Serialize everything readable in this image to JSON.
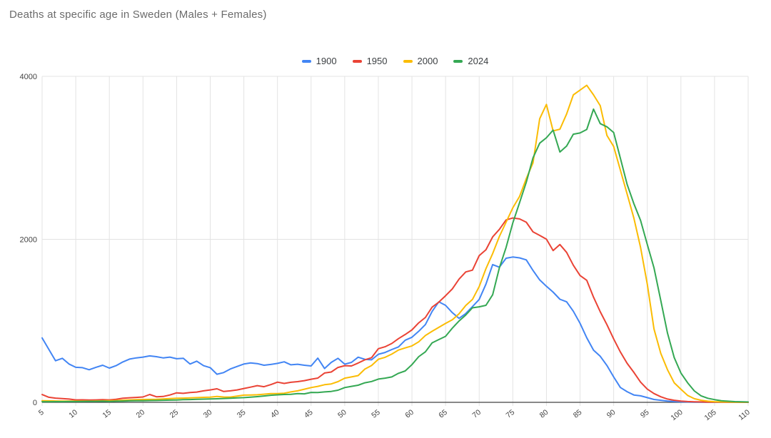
{
  "page": {
    "title": "Deaths at specific age in Sweden (Males + Females)"
  },
  "styles": {
    "background": "#ffffff",
    "title_color": "#6b6b6b",
    "axis_label_color": "#444444",
    "legend_text_color": "#3c4043",
    "gridline_color": "#e3e3e3",
    "axis_line_color": "#424242"
  },
  "chart_data": {
    "type": "line",
    "title": "Deaths at specific age in Sweden (Males + Females)",
    "xlabel": "",
    "ylabel": "",
    "ylim": [
      0,
      4000
    ],
    "y_ticks": [
      0,
      2000,
      4000
    ],
    "x_ticks": [
      5,
      10,
      15,
      20,
      25,
      30,
      35,
      40,
      45,
      50,
      55,
      60,
      65,
      70,
      75,
      80,
      85,
      90,
      95,
      100,
      105,
      110
    ],
    "grid": {
      "vertical": true,
      "horizontal": true
    },
    "legend_position": "top",
    "x": [
      5,
      6,
      7,
      8,
      9,
      10,
      11,
      12,
      13,
      14,
      15,
      16,
      17,
      18,
      19,
      20,
      21,
      22,
      23,
      24,
      25,
      26,
      27,
      28,
      29,
      30,
      31,
      32,
      33,
      34,
      35,
      36,
      37,
      38,
      39,
      40,
      41,
      42,
      43,
      44,
      45,
      46,
      47,
      48,
      49,
      50,
      51,
      52,
      53,
      54,
      55,
      56,
      57,
      58,
      59,
      60,
      61,
      62,
      63,
      64,
      65,
      66,
      67,
      68,
      69,
      70,
      71,
      72,
      73,
      74,
      75,
      76,
      77,
      78,
      79,
      80,
      81,
      82,
      83,
      84,
      85,
      86,
      87,
      88,
      89,
      90,
      91,
      92,
      93,
      94,
      95,
      96,
      97,
      98,
      99,
      100,
      101,
      102,
      103,
      104,
      105,
      106,
      107,
      108,
      109,
      110
    ],
    "series": [
      {
        "name": "1900",
        "color": "#4285f4",
        "values": [
          790,
          650,
          510,
          540,
          470,
          430,
          425,
          400,
          430,
          455,
          420,
          450,
          495,
          530,
          545,
          555,
          570,
          560,
          545,
          555,
          535,
          540,
          470,
          505,
          450,
          425,
          345,
          365,
          410,
          440,
          470,
          483,
          475,
          455,
          465,
          478,
          497,
          460,
          467,
          455,
          446,
          543,
          415,
          490,
          540,
          468,
          490,
          554,
          528,
          522,
          590,
          612,
          648,
          680,
          762,
          798,
          872,
          955,
          1115,
          1233,
          1190,
          1100,
          1030,
          1090,
          1175,
          1262,
          1450,
          1690,
          1658,
          1768,
          1783,
          1772,
          1748,
          1618,
          1502,
          1424,
          1352,
          1265,
          1233,
          1118,
          970,
          792,
          640,
          565,
          452,
          312,
          182,
          130,
          90,
          80,
          58,
          35,
          25,
          16,
          10,
          6,
          4,
          3,
          2,
          2,
          1,
          1,
          1,
          0,
          0,
          0
        ]
      },
      {
        "name": "1950",
        "color": "#ea4335",
        "values": [
          95,
          62,
          52,
          46,
          40,
          30,
          31,
          28,
          30,
          33,
          30,
          38,
          50,
          56,
          60,
          66,
          96,
          68,
          72,
          90,
          116,
          110,
          121,
          126,
          141,
          152,
          166,
          133,
          141,
          152,
          170,
          186,
          205,
          192,
          217,
          248,
          232,
          246,
          254,
          266,
          284,
          298,
          360,
          372,
          428,
          450,
          446,
          482,
          522,
          548,
          658,
          682,
          722,
          782,
          832,
          888,
          975,
          1042,
          1168,
          1230,
          1308,
          1392,
          1512,
          1600,
          1622,
          1800,
          1872,
          2030,
          2122,
          2238,
          2262,
          2250,
          2210,
          2092,
          2048,
          2002,
          1862,
          1936,
          1840,
          1682,
          1556,
          1498,
          1290,
          1112,
          952,
          778,
          618,
          478,
          368,
          248,
          163,
          108,
          68,
          40,
          25,
          15,
          10,
          7,
          5,
          3,
          2,
          2,
          1,
          1,
          0,
          0
        ]
      },
      {
        "name": "2000",
        "color": "#fbbc04",
        "values": [
          20,
          18,
          17,
          15,
          15,
          15,
          16,
          15,
          17,
          18,
          20,
          22,
          26,
          30,
          32,
          35,
          36,
          38,
          42,
          46,
          50,
          52,
          55,
          58,
          61,
          64,
          73,
          66,
          65,
          76,
          88,
          90,
          93,
          100,
          108,
          107,
          112,
          128,
          141,
          161,
          181,
          196,
          216,
          226,
          254,
          297,
          312,
          328,
          408,
          452,
          529,
          552,
          592,
          642,
          668,
          692,
          742,
          820,
          872,
          920,
          968,
          1013,
          1086,
          1188,
          1262,
          1420,
          1640,
          1825,
          2035,
          2210,
          2386,
          2526,
          2745,
          2938,
          3480,
          3655,
          3330,
          3351,
          3538,
          3772,
          3831,
          3890,
          3772,
          3640,
          3274,
          3140,
          2849,
          2555,
          2261,
          1900,
          1450,
          900,
          600,
          400,
          240,
          161,
          85,
          45,
          25,
          14,
          8,
          5,
          4,
          3,
          2,
          2
        ]
      },
      {
        "name": "2024",
        "color": "#34a853",
        "values": [
          8,
          8,
          9,
          9,
          10,
          10,
          11,
          12,
          12,
          14,
          11,
          14,
          16,
          18,
          19,
          20,
          22,
          23,
          25,
          27,
          29,
          32,
          34,
          37,
          39,
          41,
          44,
          47,
          50,
          54,
          58,
          64,
          70,
          78,
          87,
          92,
          96,
          99,
          108,
          104,
          122,
          120,
          128,
          134,
          149,
          181,
          196,
          210,
          240,
          256,
          285,
          297,
          312,
          356,
          385,
          462,
          560,
          620,
          730,
          770,
          810,
          910,
          998,
          1071,
          1160,
          1172,
          1190,
          1320,
          1650,
          1900,
          2200,
          2450,
          2700,
          3000,
          3180,
          3246,
          3340,
          3071,
          3144,
          3290,
          3305,
          3348,
          3597,
          3420,
          3380,
          3310,
          2996,
          2673,
          2438,
          2232,
          1938,
          1650,
          1250,
          850,
          550,
          360,
          240,
          140,
          80,
          50,
          33,
          20,
          14,
          9,
          6,
          4
        ]
      }
    ]
  }
}
